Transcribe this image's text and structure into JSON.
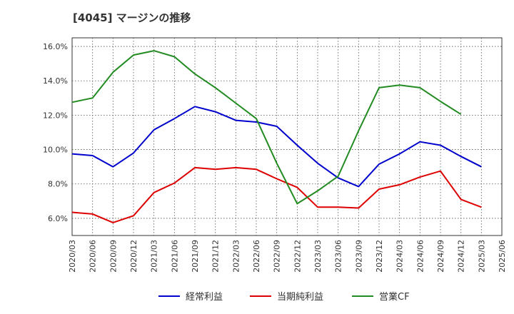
{
  "chart_data": {
    "type": "line",
    "title": "[4045]  マージンの推移",
    "xlabel": "",
    "ylabel": "",
    "ylim": [
      5.0,
      16.5
    ],
    "yticks": [
      6.0,
      8.0,
      10.0,
      12.0,
      14.0,
      16.0
    ],
    "ytick_labels": [
      "6.0%",
      "8.0%",
      "10.0%",
      "12.0%",
      "14.0%",
      "16.0%"
    ],
    "x": [
      "2020/03",
      "2020/06",
      "2020/09",
      "2020/12",
      "2021/03",
      "2021/06",
      "2021/09",
      "2021/12",
      "2022/03",
      "2022/06",
      "2022/09",
      "2022/12",
      "2023/03",
      "2023/06",
      "2023/09",
      "2023/12",
      "2024/03",
      "2024/06",
      "2024/09",
      "2024/12",
      "2025/03",
      "2025/06"
    ],
    "grid": true,
    "legend_position": "bottom",
    "series": [
      {
        "name": "経常利益",
        "color": "#0000cc",
        "values": [
          9.75,
          9.65,
          9.0,
          9.8,
          11.15,
          11.8,
          12.5,
          12.2,
          11.7,
          11.6,
          11.35,
          10.25,
          9.2,
          8.35,
          7.85,
          9.15,
          9.75,
          10.45,
          10.25,
          9.6,
          9.0,
          null
        ]
      },
      {
        "name": "当期純利益",
        "color": "#dd0000",
        "values": [
          6.35,
          6.25,
          5.75,
          6.15,
          7.5,
          8.05,
          8.95,
          8.85,
          8.95,
          8.85,
          8.3,
          7.8,
          6.65,
          6.65,
          6.6,
          7.7,
          7.95,
          8.4,
          8.75,
          7.1,
          6.65,
          null
        ]
      },
      {
        "name": "営業CF",
        "color": "#228b22",
        "values": [
          12.75,
          13.0,
          14.5,
          15.5,
          15.75,
          15.4,
          14.4,
          13.6,
          12.7,
          11.8,
          9.2,
          6.85,
          7.6,
          8.45,
          11.1,
          13.6,
          13.75,
          13.6,
          12.8,
          12.05,
          null,
          null
        ]
      }
    ]
  }
}
